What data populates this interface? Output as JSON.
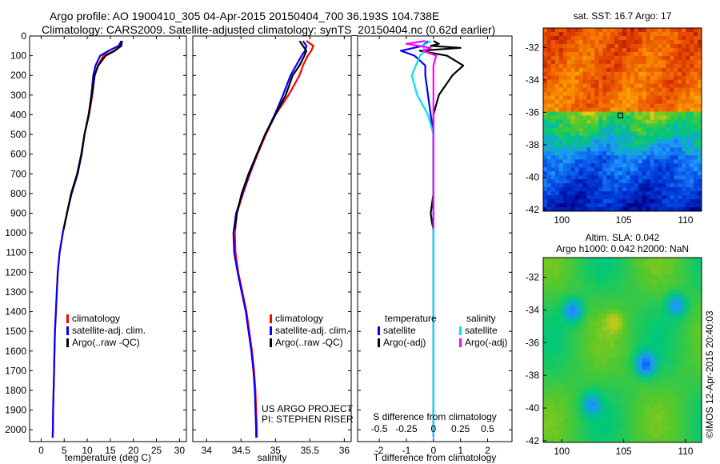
{
  "header": {
    "line1": "Argo profile: AO 1900410_305 04-Apr-2015 20150404_700 36.193S 104.738E",
    "line2": "Climatology: CARS2009. Satellite-adjusted climatology: synTS_20150404.nc (0.62d earlier)"
  },
  "stamp": "©IMOS 12-Apr-2015 20:40:03",
  "colors": {
    "climatology": "#ff0000",
    "satellite": "#0000ff",
    "argo": "#000000",
    "sal_satellite": "#00e5e5",
    "sal_argo": "#ff00ff"
  },
  "depth_ticks": [
    "0",
    "100",
    "200",
    "300",
    "400",
    "500",
    "600",
    "700",
    "800",
    "900",
    "1000",
    "1100",
    "1200",
    "1300",
    "1400",
    "1500",
    "1600",
    "1700",
    "1800",
    "1900",
    "2000"
  ],
  "chart_data": [
    {
      "type": "line",
      "id": "temperature",
      "xlabel": "temperature (deg C)",
      "ylabel": "",
      "xlim": [
        -2.5,
        31.5
      ],
      "ylim": [
        2060,
        0
      ],
      "xticks": [
        "0",
        "5",
        "10",
        "15",
        "20",
        "25",
        "30"
      ],
      "legend": [
        "climatology",
        "satellite-adj. clim.",
        "Argo(..raw -QC)"
      ],
      "series": [
        {
          "name": "climatology",
          "color": "#ff0000",
          "points": [
            [
              17.6,
              25
            ],
            [
              17.2,
              50
            ],
            [
              15.8,
              75
            ],
            [
              13.5,
              100
            ],
            [
              12.3,
              150
            ],
            [
              11.6,
              200
            ],
            [
              11.1,
              300
            ],
            [
              10.4,
              400
            ],
            [
              9.4,
              500
            ],
            [
              8.8,
              600
            ],
            [
              7.9,
              700
            ],
            [
              6.6,
              800
            ],
            [
              5.6,
              900
            ],
            [
              4.7,
              1000
            ],
            [
              4.0,
              1100
            ],
            [
              3.6,
              1200
            ],
            [
              3.4,
              1300
            ],
            [
              3.2,
              1400
            ],
            [
              3.0,
              1500
            ],
            [
              2.9,
              1600
            ],
            [
              2.8,
              1700
            ],
            [
              2.7,
              1800
            ],
            [
              2.6,
              1900
            ],
            [
              2.55,
              2000
            ],
            [
              2.5,
              2040
            ]
          ]
        },
        {
          "name": "satellite-adj. clim.",
          "color": "#0000ff",
          "points": [
            [
              17.4,
              25
            ],
            [
              16.8,
              50
            ],
            [
              14.6,
              75
            ],
            [
              12.8,
              100
            ],
            [
              11.8,
              150
            ],
            [
              11.3,
              200
            ],
            [
              10.9,
              300
            ],
            [
              10.3,
              400
            ],
            [
              9.4,
              500
            ],
            [
              8.8,
              600
            ],
            [
              7.9,
              700
            ],
            [
              6.6,
              800
            ],
            [
              5.6,
              900
            ],
            [
              4.7,
              1000
            ],
            [
              4.0,
              1100
            ],
            [
              3.6,
              1200
            ],
            [
              3.4,
              1300
            ],
            [
              3.2,
              1400
            ],
            [
              3.0,
              1500
            ],
            [
              2.9,
              1600
            ],
            [
              2.8,
              1700
            ],
            [
              2.7,
              1800
            ],
            [
              2.6,
              1900
            ],
            [
              2.55,
              2000
            ],
            [
              2.5,
              2040
            ]
          ]
        },
        {
          "name": "Argo(..raw -QC)",
          "color": "#000000",
          "points": [
            [
              17.5,
              25
            ],
            [
              17.4,
              50
            ],
            [
              16.0,
              75
            ],
            [
              14.0,
              100
            ],
            [
              12.4,
              150
            ],
            [
              11.6,
              200
            ],
            [
              11.0,
              300
            ],
            [
              10.3,
              400
            ],
            [
              9.4,
              500
            ],
            [
              8.7,
              600
            ],
            [
              7.8,
              700
            ],
            [
              6.5,
              800
            ],
            [
              5.6,
              900
            ],
            [
              4.9,
              980
            ]
          ]
        }
      ]
    },
    {
      "type": "line",
      "id": "salinity",
      "xlabel": "salinity",
      "ylabel": "",
      "xlim": [
        33.8,
        36.1
      ],
      "ylim": [
        2060,
        0
      ],
      "xticks": [
        "34",
        "34.5",
        "35",
        "35.5",
        "36"
      ],
      "legend": [
        "climatology",
        "satellite-adj. clim.",
        "Argo(..raw -QC)"
      ],
      "annotation": [
        "US ARGO PROJECT",
        "PI: STEPHEN RISER"
      ],
      "series": [
        {
          "name": "climatology",
          "color": "#ff0000",
          "points": [
            [
              35.45,
              25
            ],
            [
              35.55,
              50
            ],
            [
              35.52,
              75
            ],
            [
              35.47,
              100
            ],
            [
              35.4,
              150
            ],
            [
              35.35,
              200
            ],
            [
              35.19,
              300
            ],
            [
              35.0,
              400
            ],
            [
              34.86,
              500
            ],
            [
              34.74,
              600
            ],
            [
              34.63,
              700
            ],
            [
              34.53,
              800
            ],
            [
              34.44,
              900
            ],
            [
              34.41,
              1000
            ],
            [
              34.42,
              1100
            ],
            [
              34.46,
              1200
            ],
            [
              34.52,
              1300
            ],
            [
              34.58,
              1400
            ],
            [
              34.62,
              1500
            ],
            [
              34.66,
              1600
            ],
            [
              34.69,
              1700
            ],
            [
              34.71,
              1800
            ],
            [
              34.72,
              1900
            ],
            [
              34.73,
              2000
            ],
            [
              34.73,
              2040
            ]
          ]
        },
        {
          "name": "satellite-adj. clim.",
          "color": "#0000ff",
          "points": [
            [
              35.4,
              25
            ],
            [
              35.45,
              50
            ],
            [
              35.43,
              75
            ],
            [
              35.38,
              100
            ],
            [
              35.3,
              150
            ],
            [
              35.22,
              200
            ],
            [
              35.11,
              300
            ],
            [
              34.99,
              400
            ],
            [
              34.85,
              500
            ],
            [
              34.73,
              600
            ],
            [
              34.62,
              700
            ],
            [
              34.52,
              800
            ],
            [
              34.43,
              900
            ],
            [
              34.39,
              1000
            ],
            [
              34.4,
              1100
            ],
            [
              34.45,
              1200
            ],
            [
              34.51,
              1300
            ],
            [
              34.57,
              1400
            ],
            [
              34.61,
              1500
            ],
            [
              34.65,
              1600
            ],
            [
              34.68,
              1700
            ],
            [
              34.7,
              1800
            ],
            [
              34.71,
              1900
            ],
            [
              34.72,
              2000
            ],
            [
              34.72,
              2040
            ]
          ]
        },
        {
          "name": "Argo(..raw -QC)",
          "color": "#000000",
          "points": [
            [
              35.35,
              25
            ],
            [
              35.4,
              50
            ],
            [
              35.45,
              75
            ],
            [
              35.42,
              100
            ],
            [
              35.35,
              150
            ],
            [
              35.25,
              200
            ],
            [
              35.15,
              300
            ],
            [
              35.0,
              400
            ],
            [
              34.85,
              500
            ],
            [
              34.73,
              600
            ],
            [
              34.61,
              700
            ],
            [
              34.51,
              800
            ],
            [
              34.44,
              900
            ],
            [
              34.41,
              980
            ]
          ]
        }
      ]
    },
    {
      "type": "line",
      "id": "difference",
      "xlabel": "T difference from climatology",
      "xlabel_top": "S difference from climatology",
      "ylabel": "",
      "xlim": [
        -2.8,
        2.9
      ],
      "ylim": [
        2060,
        0
      ],
      "xticks": [
        "-2",
        "-1",
        "0",
        "1",
        "2"
      ],
      "xticks_top": [
        "-0.5",
        "-0.25",
        "0",
        "0.25",
        "0.5"
      ],
      "legend": {
        "temperature_title": "temperature",
        "salinity_title": "salinity",
        "items": [
          "satellite",
          "Argo(-adj)",
          "satellite",
          "Argo(-adj)"
        ]
      },
      "series": [
        {
          "name": "temperature satellite",
          "color": "#0000ff",
          "points": [
            [
              -0.2,
              25
            ],
            [
              -0.4,
              50
            ],
            [
              -1.2,
              75
            ],
            [
              -0.7,
              100
            ],
            [
              -0.3,
              150
            ],
            [
              -0.3,
              200
            ],
            [
              -0.2,
              300
            ],
            [
              -0.1,
              400
            ],
            [
              0,
              500
            ],
            [
              0,
              600
            ],
            [
              0,
              800
            ],
            [
              0,
              1000
            ],
            [
              0,
              1500
            ],
            [
              0,
              2040
            ]
          ]
        },
        {
          "name": "temperature Argo(-adj)",
          "color": "#000000",
          "points": [
            [
              0,
              25
            ],
            [
              0.2,
              40
            ],
            [
              -0.1,
              50
            ],
            [
              1.0,
              60
            ],
            [
              -0.5,
              75
            ],
            [
              0.5,
              100
            ],
            [
              1.1,
              150
            ],
            [
              0.7,
              200
            ],
            [
              0.2,
              300
            ],
            [
              0,
              400
            ],
            [
              0,
              500
            ],
            [
              0,
              700
            ],
            [
              0,
              800
            ],
            [
              -0.1,
              900
            ],
            [
              -0.05,
              950
            ],
            [
              0,
              980
            ]
          ]
        },
        {
          "name": "salinity satellite",
          "color": "#00e5e5",
          "points": [
            [
              -0.1,
              25
            ],
            [
              -0.4,
              50
            ],
            [
              -0.3,
              75
            ],
            [
              -0.5,
              100
            ],
            [
              -0.8,
              200
            ],
            [
              -0.6,
              300
            ],
            [
              -0.2,
              400
            ],
            [
              0,
              500
            ],
            [
              0,
              700
            ],
            [
              0,
              900
            ],
            [
              0,
              1200
            ],
            [
              0,
              1500
            ],
            [
              0,
              2040
            ]
          ]
        },
        {
          "name": "salinity Argo(-adj)",
          "color": "#ff00ff",
          "points": [
            [
              -0.3,
              25
            ],
            [
              -1.0,
              40
            ],
            [
              -0.1,
              60
            ],
            [
              -0.4,
              75
            ],
            [
              0.1,
              100
            ],
            [
              0,
              150
            ],
            [
              0,
              200
            ],
            [
              0,
              400
            ],
            [
              0,
              700
            ],
            [
              0,
              900
            ],
            [
              0,
              980
            ]
          ]
        }
      ]
    },
    {
      "type": "heatmap",
      "id": "sst",
      "title": "sat. SST: 16.7 Argo: 17",
      "xlim": [
        98.5,
        111.3
      ],
      "ylim": [
        -42.1,
        -30.8
      ],
      "xticks": [
        "100",
        "105",
        "110"
      ],
      "yticks": [
        "-32",
        "-34",
        "-36",
        "-38",
        "-40",
        "-42"
      ],
      "argo_position": [
        104.738,
        -36.193
      ]
    },
    {
      "type": "heatmap",
      "id": "sla",
      "title": "Altim. SLA: 0.042",
      "subtitle": "Argo h1000: 0.042 h2000: NaN",
      "xlim": [
        98.5,
        111.3
      ],
      "ylim": [
        -42.1,
        -30.8
      ],
      "xticks": [
        "100",
        "105",
        "110"
      ],
      "yticks": [
        "-32",
        "-34",
        "-36",
        "-38",
        "-40",
        "-42"
      ]
    }
  ]
}
